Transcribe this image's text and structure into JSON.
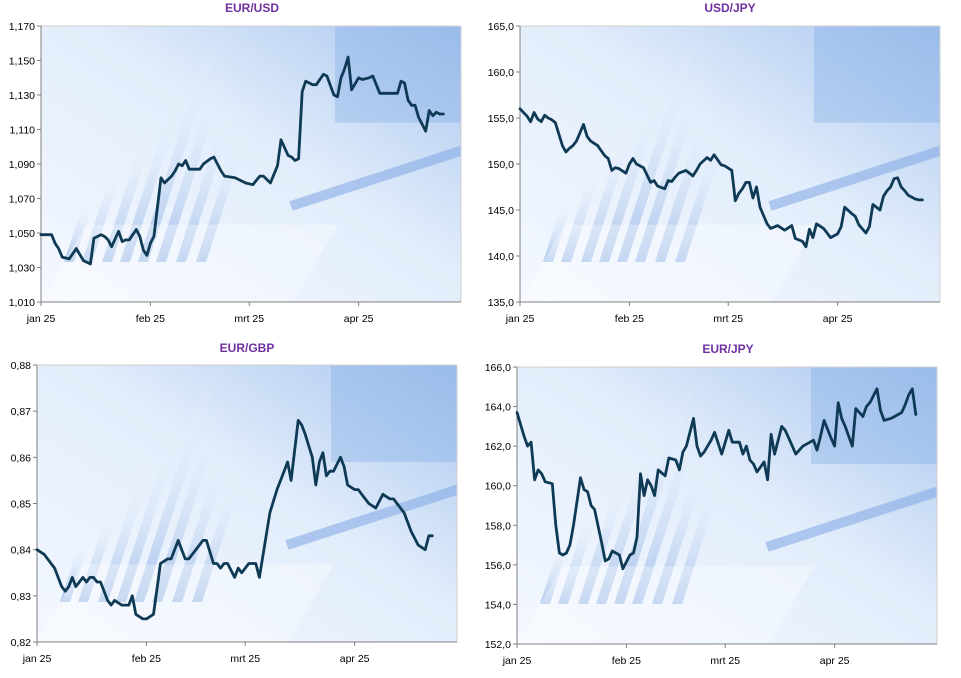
{
  "colors": {
    "title": "#7030a0",
    "line": "#0f3a55"
  },
  "chart_data": [
    {
      "type": "line",
      "title": "EUR/USD",
      "x_ticks": [
        "jan 25",
        "feb 25",
        "mrt 25",
        "apr 25"
      ],
      "y_ticks": [
        "1,010",
        "1,030",
        "1,050",
        "1,070",
        "1,090",
        "1,110",
        "1,130",
        "1,150",
        "1,170"
      ],
      "ylim": [
        1.01,
        1.17
      ],
      "x_range_days": [
        0,
        119
      ],
      "x_tick_days": [
        0,
        31,
        59,
        90
      ],
      "series": [
        {
          "x": [
            0,
            3,
            4,
            5,
            6,
            8,
            10,
            12,
            13,
            14,
            15,
            17,
            18,
            19,
            20,
            22,
            23,
            24,
            25,
            27,
            28,
            29,
            30,
            31,
            32,
            34,
            35,
            36,
            37,
            38,
            39,
            40,
            41,
            42,
            45,
            46,
            48,
            49,
            51,
            52,
            55,
            58,
            60,
            62,
            63,
            64,
            65,
            67,
            68,
            70,
            71,
            72,
            73,
            74,
            75,
            77,
            78,
            80,
            81,
            83,
            84,
            85,
            86,
            87,
            88,
            90,
            91,
            93,
            94,
            96,
            98,
            101,
            102,
            103,
            104,
            105,
            106,
            107,
            108,
            109,
            110,
            111,
            112,
            113,
            114
          ],
          "y": [
            1.049,
            1.049,
            1.044,
            1.041,
            1.036,
            1.035,
            1.041,
            1.034,
            1.033,
            1.032,
            1.047,
            1.049,
            1.048,
            1.046,
            1.042,
            1.051,
            1.045,
            1.046,
            1.046,
            1.052,
            1.048,
            1.04,
            1.037,
            1.044,
            1.048,
            1.082,
            1.079,
            1.081,
            1.083,
            1.086,
            1.09,
            1.089,
            1.092,
            1.087,
            1.087,
            1.09,
            1.093,
            1.094,
            1.086,
            1.083,
            1.082,
            1.079,
            1.078,
            1.083,
            1.083,
            1.081,
            1.079,
            1.089,
            1.104,
            1.095,
            1.094,
            1.092,
            1.093,
            1.132,
            1.138,
            1.136,
            1.136,
            1.142,
            1.141,
            1.13,
            1.129,
            1.14,
            1.145,
            1.152,
            1.133,
            1.14,
            1.139,
            1.14,
            1.141,
            1.131,
            1.131,
            1.131,
            1.138,
            1.137,
            1.127,
            1.124,
            1.124,
            1.117,
            1.113,
            1.109,
            1.121,
            1.118,
            1.12,
            1.119,
            1.119
          ]
        }
      ]
    },
    {
      "type": "line",
      "title": "USD/JPY",
      "x_ticks": [
        "jan 25",
        "feb 25",
        "mrt 25",
        "apr 25"
      ],
      "y_ticks": [
        "135,0",
        "140,0",
        "145,0",
        "150,0",
        "155,0",
        "160,0",
        "165,0"
      ],
      "ylim": [
        135.0,
        165.0
      ],
      "x_range_days": [
        0,
        119
      ],
      "x_tick_days": [
        0,
        31,
        59,
        90
      ],
      "series": [
        {
          "x": [
            0,
            2,
            3,
            4,
            5,
            6,
            7,
            8,
            9,
            10,
            12,
            13,
            14,
            15,
            16,
            18,
            19,
            20,
            22,
            24,
            25,
            26,
            27,
            28,
            30,
            31,
            32,
            33,
            35,
            37,
            38,
            39,
            41,
            42,
            43,
            44,
            45,
            47,
            49,
            50,
            51,
            53,
            54,
            55,
            57,
            58,
            60,
            61,
            62,
            63,
            64,
            65,
            66,
            67,
            68,
            70,
            71,
            73,
            75,
            77,
            78,
            80,
            81,
            82,
            83,
            84,
            86,
            87,
            88,
            90,
            91,
            92,
            94,
            95,
            96,
            98,
            99,
            100,
            102,
            103,
            104,
            105,
            106,
            107,
            108,
            109,
            110,
            112,
            113,
            114
          ],
          "y": [
            156.0,
            155.2,
            154.6,
            155.6,
            154.9,
            154.6,
            155.3,
            155.0,
            154.8,
            154.5,
            152.0,
            151.3,
            151.7,
            152.0,
            152.5,
            154.3,
            153.0,
            152.5,
            152.0,
            150.9,
            150.6,
            149.3,
            149.6,
            149.5,
            149.0,
            150.0,
            150.6,
            150.0,
            149.6,
            148.0,
            148.2,
            147.6,
            147.3,
            148.2,
            148.1,
            148.6,
            149.0,
            149.3,
            148.7,
            149.3,
            150.0,
            150.7,
            150.4,
            151.0,
            149.9,
            149.8,
            149.3,
            146.0,
            146.8,
            147.3,
            148.0,
            148.0,
            146.3,
            147.5,
            145.3,
            143.5,
            143.0,
            143.3,
            142.8,
            143.3,
            141.9,
            141.6,
            141.0,
            142.9,
            142.0,
            143.5,
            143.0,
            142.5,
            142.0,
            142.4,
            143.2,
            145.3,
            144.6,
            144.3,
            143.4,
            142.5,
            143.2,
            145.6,
            145.0,
            146.5,
            147.1,
            147.5,
            148.4,
            148.5,
            147.5,
            147.1,
            146.6,
            146.2,
            146.1,
            146.1
          ]
        }
      ]
    },
    {
      "type": "line",
      "title": "EUR/GBP",
      "x_ticks": [
        "jan 25",
        "feb 25",
        "mrt 25",
        "apr 25"
      ],
      "y_ticks": [
        "0,82",
        "0,83",
        "0,84",
        "0,85",
        "0,86",
        "0,87",
        "0,88"
      ],
      "ylim": [
        0.82,
        0.88
      ],
      "x_range_days": [
        0,
        119
      ],
      "x_tick_days": [
        0,
        31,
        59,
        90
      ],
      "series": [
        {
          "x": [
            0,
            2,
            4,
            5,
            7,
            8,
            9,
            10,
            11,
            12,
            13,
            14,
            15,
            16,
            17,
            18,
            19,
            20,
            21,
            22,
            24,
            25,
            26,
            27,
            28,
            30,
            31,
            33,
            35,
            37,
            38,
            40,
            41,
            42,
            43,
            44,
            46,
            47,
            48,
            50,
            51,
            52,
            53,
            54,
            56,
            57,
            58,
            60,
            62,
            63,
            66,
            68,
            70,
            71,
            72,
            74,
            75,
            76,
            78,
            79,
            80,
            81,
            82,
            83,
            84,
            86,
            87,
            88,
            90,
            91,
            92,
            94,
            96,
            98,
            100,
            101,
            102,
            104,
            105,
            106,
            108,
            110,
            111,
            112
          ],
          "y": [
            0.84,
            0.839,
            0.837,
            0.836,
            0.832,
            0.831,
            0.832,
            0.834,
            0.832,
            0.833,
            0.834,
            0.833,
            0.834,
            0.834,
            0.833,
            0.833,
            0.831,
            0.829,
            0.828,
            0.829,
            0.828,
            0.828,
            0.828,
            0.83,
            0.826,
            0.825,
            0.825,
            0.826,
            0.837,
            0.838,
            0.838,
            0.842,
            0.84,
            0.838,
            0.838,
            0.839,
            0.841,
            0.842,
            0.842,
            0.837,
            0.837,
            0.836,
            0.837,
            0.837,
            0.834,
            0.836,
            0.835,
            0.837,
            0.837,
            0.834,
            0.848,
            0.853,
            0.857,
            0.859,
            0.855,
            0.868,
            0.867,
            0.865,
            0.86,
            0.854,
            0.859,
            0.861,
            0.856,
            0.857,
            0.857,
            0.86,
            0.858,
            0.854,
            0.853,
            0.853,
            0.852,
            0.85,
            0.849,
            0.852,
            0.851,
            0.851,
            0.85,
            0.848,
            0.846,
            0.844,
            0.841,
            0.84,
            0.843,
            0.843
          ]
        }
      ]
    },
    {
      "type": "line",
      "title": "EUR/JPY",
      "x_ticks": [
        "jan 25",
        "feb 25",
        "mrt 25",
        "apr 25"
      ],
      "y_ticks": [
        "152,0",
        "154,0",
        "156,0",
        "158,0",
        "160,0",
        "162,0",
        "164,0",
        "166,0"
      ],
      "ylim": [
        152.0,
        166.0
      ],
      "x_range_days": [
        0,
        119
      ],
      "x_tick_days": [
        0,
        31,
        59,
        90
      ],
      "series": [
        {
          "x": [
            0,
            2,
            3,
            4,
            5,
            6,
            7,
            8,
            10,
            11,
            12,
            13,
            14,
            15,
            16,
            18,
            19,
            20,
            21,
            22,
            24,
            25,
            26,
            27,
            28,
            29,
            30,
            32,
            33,
            34,
            35,
            36,
            37,
            38,
            39,
            40,
            42,
            43,
            45,
            46,
            47,
            48,
            50,
            51,
            52,
            53,
            55,
            56,
            58,
            60,
            61,
            62,
            63,
            64,
            65,
            66,
            67,
            68,
            70,
            71,
            72,
            73,
            75,
            76,
            77,
            79,
            80,
            81,
            82,
            84,
            85,
            86,
            87,
            89,
            90,
            91,
            92,
            93,
            95,
            96,
            98,
            99,
            100,
            102,
            103,
            104,
            106,
            107,
            109,
            110,
            111,
            112,
            113
          ],
          "y": [
            163.7,
            162.5,
            162.0,
            162.2,
            160.3,
            160.8,
            160.6,
            160.2,
            160.1,
            158.0,
            156.6,
            156.5,
            156.6,
            157.0,
            158.0,
            160.4,
            159.8,
            159.7,
            159.0,
            158.8,
            157.1,
            156.2,
            156.3,
            156.7,
            156.6,
            156.5,
            155.8,
            156.5,
            156.6,
            157.4,
            160.6,
            159.5,
            160.3,
            160.0,
            159.5,
            160.8,
            160.5,
            161.4,
            161.3,
            160.8,
            161.7,
            162.0,
            163.4,
            162.0,
            161.5,
            161.7,
            162.3,
            162.7,
            161.6,
            162.8,
            162.2,
            162.2,
            162.2,
            161.6,
            162.0,
            161.3,
            161.1,
            160.7,
            161.2,
            160.3,
            162.6,
            161.6,
            163.0,
            162.8,
            162.4,
            161.6,
            161.8,
            162.0,
            162.1,
            162.3,
            161.8,
            162.5,
            163.3,
            162.4,
            162.0,
            164.2,
            163.4,
            163.0,
            162.0,
            163.9,
            163.5,
            164.0,
            164.2,
            164.9,
            163.8,
            163.3,
            163.4,
            163.5,
            163.7,
            164.1,
            164.6,
            164.9,
            163.6
          ]
        }
      ]
    }
  ]
}
